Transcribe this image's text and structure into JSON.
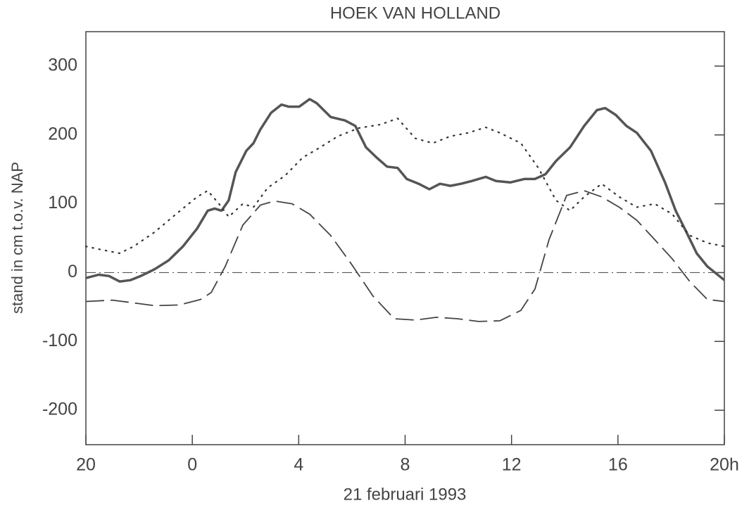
{
  "chart_data": {
    "type": "line",
    "title": "HOEK VAN HOLLAND",
    "x_label": "21 februari 1993",
    "y_label": "stand in cm t.o.v. NAP",
    "xlim": [
      -4,
      20
    ],
    "xticks": [
      {
        "value": -4,
        "label": "20"
      },
      0,
      4,
      8,
      12,
      16,
      {
        "value": 20,
        "label": "20h"
      }
    ],
    "ylim": [
      -250,
      350
    ],
    "yticks": [
      -200,
      -100,
      0,
      100,
      200,
      300
    ],
    "zero_line": true,
    "series": [
      {
        "color": "#555555",
        "style": "solid",
        "x": [
          -4,
          -3.52,
          -3.13,
          -2.73,
          -2.33,
          -1.94,
          -1.41,
          -0.88,
          -0.35,
          0.18,
          0.58,
          0.84,
          1.1,
          1.37,
          1.63,
          2.03,
          2.3,
          2.56,
          2.96,
          3.35,
          3.62,
          4.02,
          4.41,
          4.68,
          5.2,
          5.74,
          6.13,
          6.53,
          6.93,
          7.32,
          7.72,
          8.06,
          8.51,
          8.91,
          9.31,
          9.7,
          10.1,
          10.5,
          11.03,
          11.42,
          11.95,
          12.48,
          12.88,
          13.28,
          13.67,
          14.2,
          14.73,
          15.21,
          15.52,
          15.92,
          16.32,
          16.71,
          17.24,
          17.77,
          18.17,
          18.57,
          18.96,
          19.36,
          20
        ],
        "values": [
          -8,
          -3,
          -5,
          -13,
          -11,
          -5,
          5,
          18,
          38,
          64,
          90,
          93,
          90,
          105,
          146,
          177,
          188,
          208,
          232,
          244,
          241,
          241,
          252,
          246,
          226,
          221,
          213,
          182,
          167,
          154,
          152,
          136,
          129,
          121,
          129,
          126,
          129,
          133,
          139,
          133,
          131,
          136,
          136,
          143,
          162,
          182,
          213,
          236,
          239,
          229,
          213,
          203,
          177,
          131,
          90,
          59,
          28,
          9,
          -11
        ]
      },
      {
        "color": "#333333",
        "style": "dotted",
        "x": [
          -4,
          -3.39,
          -2.73,
          -2.2,
          -1.41,
          -0.61,
          0.18,
          0.58,
          1.0,
          1.37,
          1.9,
          2.3,
          2.83,
          3.49,
          4.15,
          4.81,
          5.47,
          6.26,
          7.06,
          7.72,
          8.38,
          9.04,
          9.7,
          10.37,
          11.03,
          11.56,
          12.35,
          13.01,
          13.67,
          14.2,
          14.73,
          15.39,
          16.05,
          16.71,
          17.38,
          18.04,
          18.7,
          19.36,
          20
        ],
        "values": [
          38,
          33,
          28,
          38,
          59,
          85,
          110,
          119,
          100,
          81,
          100,
          95,
          123,
          141,
          167,
          182,
          198,
          210,
          215,
          224,
          195,
          188,
          198,
          203,
          211,
          203,
          188,
          152,
          105,
          90,
          110,
          129,
          110,
          95,
          100,
          85,
          54,
          43,
          38
        ]
      },
      {
        "color": "#444444",
        "style": "dashed",
        "x": [
          -4,
          -3,
          -2.2,
          -1.41,
          -0.48,
          0.31,
          0.71,
          1.24,
          1.9,
          2.56,
          3.09,
          3.75,
          4.41,
          5.2,
          5.99,
          6.79,
          7.59,
          8.38,
          9.17,
          9.97,
          10.76,
          11.56,
          12.35,
          12.88,
          13.41,
          14.07,
          14.73,
          15.39,
          16.05,
          16.71,
          17.38,
          18.04,
          18.7,
          19.36,
          20
        ],
        "values": [
          -42,
          -40,
          -44,
          -48,
          -47,
          -39,
          -29,
          9,
          69,
          98,
          104,
          100,
          85,
          54,
          12,
          -34,
          -67,
          -69,
          -65,
          -67,
          -71,
          -70,
          -55,
          -24,
          48,
          112,
          119,
          110,
          95,
          76,
          48,
          20,
          -13,
          -39,
          -42
        ]
      }
    ]
  }
}
